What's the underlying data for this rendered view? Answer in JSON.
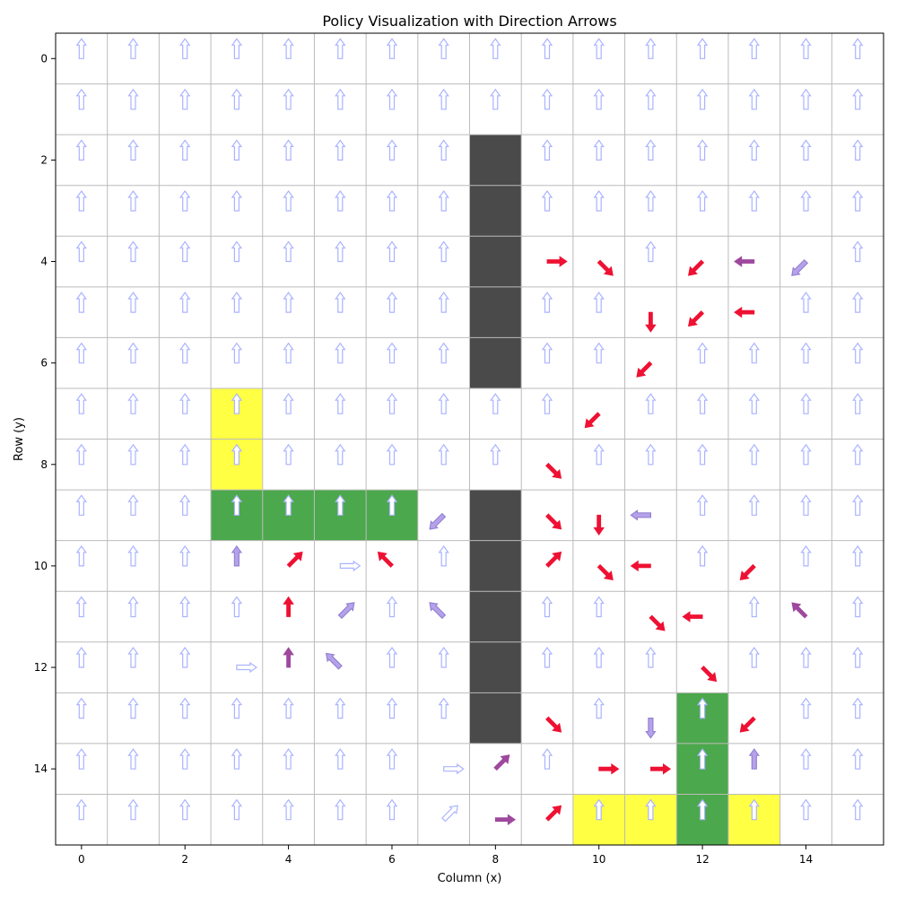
{
  "chart_data": {
    "type": "heatmap",
    "title": "Policy Visualization with Direction Arrows",
    "xlabel": "Column (x)",
    "ylabel": "Row (y)",
    "grid_size": 16,
    "xlim": [
      -0.5,
      15.5
    ],
    "ylim": [
      15.5,
      -0.5
    ],
    "x_ticks": [
      0,
      2,
      4,
      6,
      8,
      10,
      12,
      14
    ],
    "y_ticks": [
      0,
      2,
      4,
      6,
      8,
      10,
      12,
      14
    ],
    "grid": true,
    "cell_colors": {
      "obstacle": "#4a4a4a",
      "goal": "#4ca84c",
      "highlight": "#ffff44"
    },
    "arrow_colors": {
      "red": "#ee1133",
      "purple": "#993f99",
      "lightpurple": "#a48ce6",
      "light": "#aab4ff"
    },
    "obstacle_cells": [
      [
        8,
        2
      ],
      [
        8,
        3
      ],
      [
        8,
        4
      ],
      [
        8,
        5
      ],
      [
        8,
        6
      ],
      [
        8,
        9
      ],
      [
        8,
        10
      ],
      [
        8,
        11
      ],
      [
        8,
        12
      ],
      [
        8,
        13
      ]
    ],
    "goal_cells": [
      [
        3,
        9
      ],
      [
        4,
        9
      ],
      [
        5,
        9
      ],
      [
        6,
        9
      ],
      [
        12,
        13
      ],
      [
        12,
        14
      ],
      [
        12,
        15
      ]
    ],
    "highlight_cells": [
      [
        3,
        7
      ],
      [
        3,
        8
      ],
      [
        10,
        15
      ],
      [
        11,
        15
      ],
      [
        13,
        15
      ]
    ],
    "default_arrow": {
      "dir": "up",
      "color": "light"
    },
    "special_arrows": [
      {
        "x": 9,
        "y": 4,
        "dir": "right",
        "color": "red"
      },
      {
        "x": 10,
        "y": 4,
        "dir": "down-right",
        "color": "red"
      },
      {
        "x": 12,
        "y": 4,
        "dir": "down-left",
        "color": "red"
      },
      {
        "x": 13,
        "y": 4,
        "dir": "left",
        "color": "purple"
      },
      {
        "x": 14,
        "y": 4,
        "dir": "down-left",
        "color": "lightpurple"
      },
      {
        "x": 11,
        "y": 5,
        "dir": "down",
        "color": "red"
      },
      {
        "x": 12,
        "y": 5,
        "dir": "down-left",
        "color": "red"
      },
      {
        "x": 13,
        "y": 5,
        "dir": "left",
        "color": "red"
      },
      {
        "x": 11,
        "y": 6,
        "dir": "down-left",
        "color": "red"
      },
      {
        "x": 10,
        "y": 7,
        "dir": "down-left",
        "color": "red"
      },
      {
        "x": 9,
        "y": 8,
        "dir": "down-right",
        "color": "red"
      },
      {
        "x": 7,
        "y": 9,
        "dir": "down-left",
        "color": "lightpurple"
      },
      {
        "x": 9,
        "y": 9,
        "dir": "down-right",
        "color": "red"
      },
      {
        "x": 10,
        "y": 9,
        "dir": "down",
        "color": "red"
      },
      {
        "x": 11,
        "y": 9,
        "dir": "left",
        "color": "lightpurple"
      },
      {
        "x": 4,
        "y": 10,
        "dir": "up-right",
        "color": "red"
      },
      {
        "x": 5,
        "y": 10,
        "dir": "right",
        "color": "light"
      },
      {
        "x": 6,
        "y": 10,
        "dir": "up-left",
        "color": "red"
      },
      {
        "x": 9,
        "y": 10,
        "dir": "up-right",
        "color": "red"
      },
      {
        "x": 10,
        "y": 10,
        "dir": "down-right",
        "color": "red"
      },
      {
        "x": 11,
        "y": 10,
        "dir": "left",
        "color": "red"
      },
      {
        "x": 13,
        "y": 10,
        "dir": "down-left",
        "color": "red"
      },
      {
        "x": 3,
        "y": 10,
        "dir": "up",
        "color": "lightpurple"
      },
      {
        "x": 4,
        "y": 11,
        "dir": "up",
        "color": "red"
      },
      {
        "x": 5,
        "y": 11,
        "dir": "up-right",
        "color": "lightpurple"
      },
      {
        "x": 7,
        "y": 11,
        "dir": "up-left",
        "color": "lightpurple"
      },
      {
        "x": 11,
        "y": 11,
        "dir": "down-right",
        "color": "red"
      },
      {
        "x": 12,
        "y": 11,
        "dir": "left",
        "color": "red"
      },
      {
        "x": 14,
        "y": 11,
        "dir": "up-left",
        "color": "purple"
      },
      {
        "x": 3,
        "y": 12,
        "dir": "right",
        "color": "light"
      },
      {
        "x": 4,
        "y": 12,
        "dir": "up",
        "color": "purple"
      },
      {
        "x": 5,
        "y": 12,
        "dir": "up-left",
        "color": "lightpurple"
      },
      {
        "x": 12,
        "y": 12,
        "dir": "down-right",
        "color": "red"
      },
      {
        "x": 9,
        "y": 13,
        "dir": "down-right",
        "color": "red"
      },
      {
        "x": 11,
        "y": 13,
        "dir": "down",
        "color": "lightpurple"
      },
      {
        "x": 13,
        "y": 13,
        "dir": "down-left",
        "color": "red"
      },
      {
        "x": 7,
        "y": 14,
        "dir": "right",
        "color": "light"
      },
      {
        "x": 8,
        "y": 14,
        "dir": "up-right",
        "color": "purple"
      },
      {
        "x": 10,
        "y": 14,
        "dir": "right",
        "color": "red"
      },
      {
        "x": 11,
        "y": 14,
        "dir": "right",
        "color": "red"
      },
      {
        "x": 13,
        "y": 14,
        "dir": "up",
        "color": "lightpurple"
      },
      {
        "x": 7,
        "y": 15,
        "dir": "up-right",
        "color": "light"
      },
      {
        "x": 8,
        "y": 15,
        "dir": "right",
        "color": "purple"
      },
      {
        "x": 9,
        "y": 15,
        "dir": "up-right",
        "color": "red"
      }
    ]
  }
}
